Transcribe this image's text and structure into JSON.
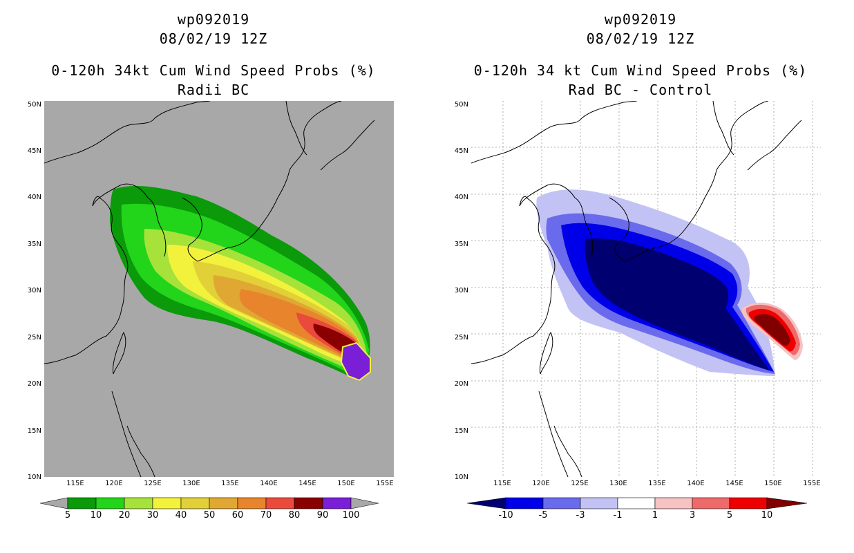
{
  "left_panel": {
    "storm_id": "wp092019",
    "datetime": "08/02/19 12Z",
    "title": "0-120h 34kt Cum Wind Speed Probs (%)",
    "subtitle": "Radii BC",
    "background": "#a8a8a8",
    "colorbar": {
      "labels": [
        "5",
        "10",
        "20",
        "30",
        "40",
        "50",
        "60",
        "70",
        "80",
        "90",
        "100"
      ],
      "colors": [
        "#0a9a0a",
        "#22d41a",
        "#a6e23a",
        "#f2f23c",
        "#e2d038",
        "#e0a832",
        "#e8852c",
        "#ea4a3c",
        "#8a0000",
        "#7a1ed8"
      ],
      "under_color": "#a8a8a8",
      "over_color": "#a8a8a8"
    }
  },
  "right_panel": {
    "storm_id": "wp092019",
    "datetime": "08/02/19 12Z",
    "title": "0-120h 34 kt Cum Wind Speed Probs (%)",
    "subtitle": "Rad BC - Control",
    "background": "#ffffff",
    "colorbar": {
      "labels": [
        "-10",
        "-5",
        "-3",
        "-1",
        "1",
        "3",
        "5",
        "10"
      ],
      "colors": [
        "#0000e8",
        "#6a6aec",
        "#c2c2f4",
        "#ffffff",
        "#f6c2c2",
        "#ee6a6a",
        "#ee0000"
      ],
      "under_color": "#000070",
      "over_color": "#800000"
    }
  },
  "axes": {
    "lat_labels": [
      "10N",
      "15N",
      "20N",
      "25N",
      "30N",
      "35N",
      "40N",
      "45N",
      "50N"
    ],
    "lon_labels": [
      "115E",
      "120E",
      "125E",
      "130E",
      "135E",
      "140E",
      "145E",
      "150E",
      "155E"
    ]
  }
}
